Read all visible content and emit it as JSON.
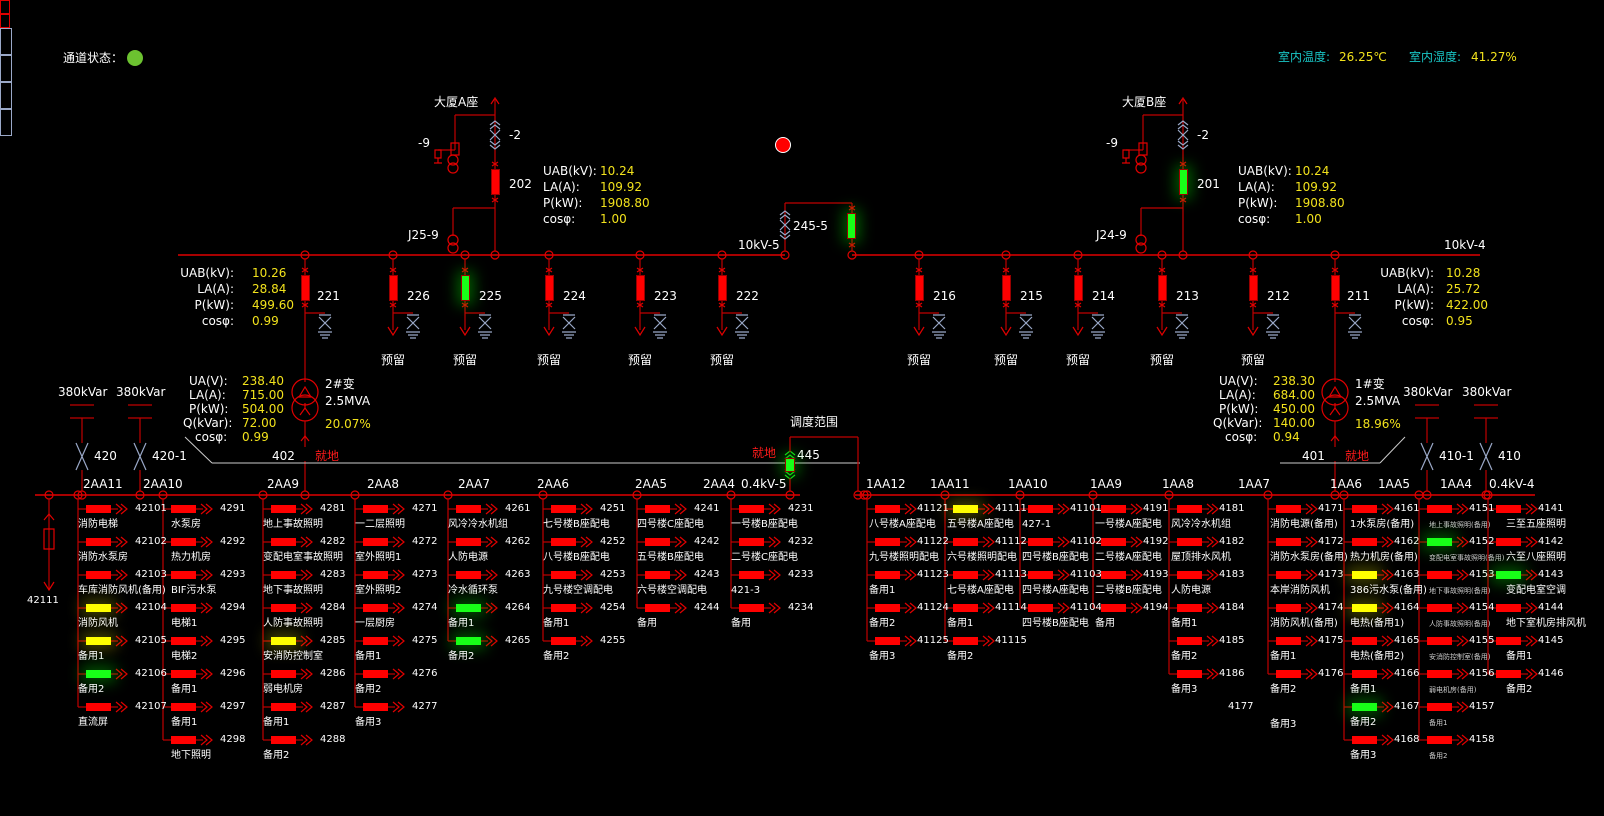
{
  "header": {
    "channel_status_label": "通道状态：",
    "channel_status_color": "#6cc230",
    "temp_label": "室内温度:",
    "temp_value": "26.25℃",
    "humidity_label": "室内湿度:",
    "humidity_value": "41.27%"
  },
  "alarm_indicator_color": "#ff0000",
  "incoming": [
    {
      "title": "大厦A座",
      "earth_switch": "-9",
      "disconnector": "-2",
      "breaker": "202",
      "breaker_state": "open",
      "pt": "J25-9",
      "meter": [
        {
          "k": "UAB(kV):",
          "v": "10.24"
        },
        {
          "k": "LA(A):",
          "v": "109.92"
        },
        {
          "k": "P(kW):",
          "v": "1908.80"
        },
        {
          "k": "cosφ:",
          "v": "1.00"
        }
      ]
    },
    {
      "title": "大厦B座",
      "earth_switch": "-9",
      "disconnector": "-2",
      "breaker": "201",
      "breaker_state": "closed",
      "pt": "J24-9",
      "meter": [
        {
          "k": "UAB(kV):",
          "v": "10.24"
        },
        {
          "k": "LA(A):",
          "v": "109.92"
        },
        {
          "k": "P(kW):",
          "v": "1908.80"
        },
        {
          "k": "cosφ:",
          "v": "1.00"
        }
      ]
    }
  ],
  "hv_buses": {
    "left": "10kV-5",
    "right": "10kV-4",
    "tie": "245-5",
    "tie_state": "closed"
  },
  "hv_feeders": {
    "left": [
      {
        "id": "221",
        "state": "open",
        "label": ""
      },
      {
        "id": "226",
        "state": "open",
        "label": "预留"
      },
      {
        "id": "225",
        "state": "closed",
        "label": "预留"
      },
      {
        "id": "224",
        "state": "open",
        "label": "预留"
      },
      {
        "id": "223",
        "state": "open",
        "label": "预留"
      },
      {
        "id": "222",
        "state": "open",
        "label": "预留"
      }
    ],
    "right": [
      {
        "id": "216",
        "state": "open",
        "label": "预留"
      },
      {
        "id": "215",
        "state": "open",
        "label": "预留"
      },
      {
        "id": "214",
        "state": "open",
        "label": "预留"
      },
      {
        "id": "213",
        "state": "open",
        "label": "预留"
      },
      {
        "id": "212",
        "state": "open",
        "label": "预留"
      },
      {
        "id": "211",
        "state": "open",
        "label": ""
      }
    ]
  },
  "feeder_meters": [
    {
      "feeder": "221",
      "rows": [
        {
          "k": "UAB(kV):",
          "v": "10.26"
        },
        {
          "k": "LA(A):",
          "v": "28.84"
        },
        {
          "k": "P(kW):",
          "v": "499.60"
        },
        {
          "k": "cosφ:",
          "v": "0.99"
        }
      ]
    },
    {
      "feeder": "211",
      "rows": [
        {
          "k": "UAB(kV):",
          "v": "10.28"
        },
        {
          "k": "LA(A):",
          "v": "25.72"
        },
        {
          "k": "P(kW):",
          "v": "422.00"
        },
        {
          "k": "cosφ:",
          "v": "0.95"
        }
      ]
    }
  ],
  "transformers": [
    {
      "name": "2#变",
      "rating": "2.5MVA",
      "load": "20.07%",
      "lv_breaker": "402",
      "mode": "就地",
      "rows": [
        {
          "k": "UA(V):",
          "v": "238.40"
        },
        {
          "k": "LA(A):",
          "v": "715.00"
        },
        {
          "k": "P(kW):",
          "v": "504.00"
        },
        {
          "k": "Q(kVar):",
          "v": "72.00"
        },
        {
          "k": "cosφ:",
          "v": "0.99"
        }
      ]
    },
    {
      "name": "1#变",
      "rating": "2.5MVA",
      "load": "18.96%",
      "lv_breaker": "401",
      "mode": "就地",
      "rows": [
        {
          "k": "UA(V):",
          "v": "238.30"
        },
        {
          "k": "LA(A):",
          "v": "684.00"
        },
        {
          "k": "P(kW):",
          "v": "450.00"
        },
        {
          "k": "Q(kVar):",
          "v": "140.00"
        },
        {
          "k": "cosφ:",
          "v": "0.94"
        }
      ]
    }
  ],
  "capacitors": [
    {
      "rating": "380kVar",
      "id": "420"
    },
    {
      "rating": "380kVar",
      "id": "420-1"
    },
    {
      "rating": "380kVar",
      "id": "410-1"
    },
    {
      "rating": "380kVar",
      "id": "410"
    }
  ],
  "bus_tie": {
    "id": "445",
    "mode": "就地",
    "scope_label": "调度范围",
    "state": "closed"
  },
  "lv_buses": {
    "left": "0.4kV-5",
    "right": "0.4kV-4",
    "left_aux": "42111"
  },
  "lv_sections": {
    "left": [
      {
        "name": "2AA11",
        "feeders": [
          {
            "id": "42101",
            "label": "消防电梯",
            "state": "open"
          },
          {
            "id": "42102",
            "label": "消防水泵房",
            "state": "open"
          },
          {
            "id": "42103",
            "label": "车库消防风机(备用)",
            "state": "open"
          },
          {
            "id": "42104",
            "label": "消防风机",
            "state": "warn"
          },
          {
            "id": "42105",
            "label": "备用1",
            "state": "warn"
          },
          {
            "id": "42106",
            "label": "备用2",
            "state": "closed"
          },
          {
            "id": "42107",
            "label": "直流屏",
            "state": "open"
          }
        ]
      },
      {
        "name": "2AA10",
        "feeders": [
          {
            "id": "4291",
            "label": "水泵房",
            "state": "open"
          },
          {
            "id": "4292",
            "label": "热力机房",
            "state": "open"
          },
          {
            "id": "4293",
            "label": "BIF污水泵",
            "state": "open"
          },
          {
            "id": "4294",
            "label": "电梯1",
            "state": "open"
          },
          {
            "id": "4295",
            "label": "电梯2",
            "state": "open"
          },
          {
            "id": "4296",
            "label": "备用1",
            "state": "open"
          },
          {
            "id": "4297",
            "label": "备用1",
            "state": "open"
          },
          {
            "id": "4298",
            "label": "地下照明",
            "state": "open"
          }
        ]
      },
      {
        "name": "2AA9",
        "feeders": [
          {
            "id": "4281",
            "label": "地上事故照明",
            "state": "open"
          },
          {
            "id": "4282",
            "label": "变配电室事故照明",
            "state": "open"
          },
          {
            "id": "4283",
            "label": "地下事故照明",
            "state": "open"
          },
          {
            "id": "4284",
            "label": "人防事故照明",
            "state": "open"
          },
          {
            "id": "4285",
            "label": "安消防控制室",
            "state": "warn"
          },
          {
            "id": "4286",
            "label": "弱电机房",
            "state": "open"
          },
          {
            "id": "4287",
            "label": "备用1",
            "state": "open"
          },
          {
            "id": "4288",
            "label": "备用2",
            "state": "open"
          }
        ]
      },
      {
        "name": "2AA8",
        "feeders": [
          {
            "id": "4271",
            "label": "一二层照明",
            "state": "open"
          },
          {
            "id": "4272",
            "label": "室外照明1",
            "state": "open"
          },
          {
            "id": "4273",
            "label": "室外照明2",
            "state": "open"
          },
          {
            "id": "4274",
            "label": "一层厨房",
            "state": "open"
          },
          {
            "id": "4275",
            "label": "备用1",
            "state": "open"
          },
          {
            "id": "4276",
            "label": "备用2",
            "state": "open"
          },
          {
            "id": "4277",
            "label": "备用3",
            "state": "open"
          }
        ]
      },
      {
        "name": "2AA7",
        "feeders": [
          {
            "id": "4261",
            "label": "风冷冷水机组",
            "state": "open"
          },
          {
            "id": "4262",
            "label": "人防电源",
            "state": "open"
          },
          {
            "id": "4263",
            "label": "冷水循环泵",
            "state": "open"
          },
          {
            "id": "4264",
            "label": "备用1",
            "state": "closed"
          },
          {
            "id": "4265",
            "label": "备用2",
            "state": "closed"
          }
        ]
      },
      {
        "name": "2AA6",
        "feeders": [
          {
            "id": "4251",
            "label": "七号楼B座配电",
            "state": "open"
          },
          {
            "id": "4252",
            "label": "八号楼B座配电",
            "state": "open"
          },
          {
            "id": "4253",
            "label": "九号楼空调配电",
            "state": "open"
          },
          {
            "id": "4254",
            "label": "备用1",
            "state": "open"
          },
          {
            "id": "4255",
            "label": "备用2",
            "state": "open"
          }
        ]
      },
      {
        "name": "2AA5",
        "feeders": [
          {
            "id": "4241",
            "label": "四号楼C座配电",
            "state": "open"
          },
          {
            "id": "4242",
            "label": "五号楼B座配电",
            "state": "open"
          },
          {
            "id": "4243",
            "label": "六号楼空调配电",
            "state": "open"
          },
          {
            "id": "4244",
            "label": "备用",
            "state": "open"
          }
        ]
      },
      {
        "name": "2AA4",
        "feeders": [
          {
            "id": "4231",
            "label": "一号楼B座配电",
            "state": "open"
          },
          {
            "id": "4232",
            "label": "二号楼C座配电",
            "state": "open"
          },
          {
            "id": "4233",
            "label": "421-3",
            "state": "open"
          },
          {
            "id": "4234",
            "label": "备用",
            "state": "open"
          }
        ]
      }
    ],
    "right": [
      {
        "name": "1AA12",
        "feeders": [
          {
            "id": "41121",
            "label": "八号楼A座配电",
            "state": "open"
          },
          {
            "id": "41122",
            "label": "九号楼照明配电",
            "state": "open"
          },
          {
            "id": "41123",
            "label": "备用1",
            "state": "open"
          },
          {
            "id": "41124",
            "label": "备用2",
            "state": "open"
          },
          {
            "id": "41125",
            "label": "备用3",
            "state": "open"
          }
        ]
      },
      {
        "name": "1AA11",
        "feeders": [
          {
            "id": "41111",
            "label": "五号楼A座配电",
            "state": "warn"
          },
          {
            "id": "41112",
            "label": "六号楼照明配电",
            "state": "open"
          },
          {
            "id": "41113",
            "label": "七号楼A座配电",
            "state": "open"
          },
          {
            "id": "41114",
            "label": "备用1",
            "state": "open"
          },
          {
            "id": "41115",
            "label": "备用2",
            "state": "open"
          }
        ]
      },
      {
        "name": "1AA10",
        "feeders": [
          {
            "id": "41101",
            "label": "427-1",
            "state": "open"
          },
          {
            "id": "41102",
            "label": "四号楼B座配电",
            "state": "open"
          },
          {
            "id": "41103",
            "label": "四号楼A座配电",
            "state": "open"
          },
          {
            "id": "41104",
            "label": "四号楼B座配电",
            "state": "open"
          }
        ]
      },
      {
        "name": "1AA9",
        "feeders": [
          {
            "id": "4191",
            "label": "一号楼A座配电",
            "state": "open"
          },
          {
            "id": "4192",
            "label": "二号楼A座配电",
            "state": "open"
          },
          {
            "id": "4193",
            "label": "二号楼B座配电",
            "state": "open"
          },
          {
            "id": "4194",
            "label": "备用",
            "state": "open"
          }
        ]
      },
      {
        "name": "1AA8",
        "feeders": [
          {
            "id": "4181",
            "label": "风冷冷水机组",
            "state": "open"
          },
          {
            "id": "4182",
            "label": "屋顶排水风机",
            "state": "open"
          },
          {
            "id": "4183",
            "label": "人防电源",
            "state": "open"
          },
          {
            "id": "4184",
            "label": "备用1",
            "state": "open"
          },
          {
            "id": "4185",
            "label": "备用2",
            "state": "open"
          },
          {
            "id": "4186",
            "label": "备用3",
            "state": "open"
          }
        ]
      },
      {
        "name": "1AA7",
        "feeders": [
          {
            "id": "4171",
            "label": "消防电源(备用)",
            "state": "open"
          },
          {
            "id": "4172",
            "label": "消防水泵房(备用)",
            "state": "open"
          },
          {
            "id": "4173",
            "label": "本岸消防风机",
            "state": "open"
          },
          {
            "id": "4174",
            "label": "消防风机(备用)",
            "state": "open"
          },
          {
            "id": "4175",
            "label": "备用1",
            "state": "open"
          },
          {
            "id": "4176",
            "label": "备用2",
            "state": "open"
          },
          {
            "id": "4177",
            "label": "备用3",
            "state": "none"
          }
        ]
      },
      {
        "name": "1AA6",
        "feeders": [
          {
            "id": "4161",
            "label": "1水泵房(备用)",
            "state": "open"
          },
          {
            "id": "4162",
            "label": "热力机房(备用)",
            "state": "open"
          },
          {
            "id": "4163",
            "label": "386污水泵(备用)",
            "state": "warn"
          },
          {
            "id": "4164",
            "label": "电热(备用1)",
            "state": "warn"
          },
          {
            "id": "4165",
            "label": "电热(备用2)",
            "state": "open"
          },
          {
            "id": "4166",
            "label": "备用1",
            "state": "open"
          },
          {
            "id": "4167",
            "label": "备用2",
            "state": "closed"
          },
          {
            "id": "4168",
            "label": "备用3",
            "state": "open"
          }
        ]
      },
      {
        "name": "1AA5",
        "feeders": [
          {
            "id": "4151",
            "label": "地上事故照明(备用)",
            "state": "open"
          },
          {
            "id": "4152",
            "label": "变配电室事故照明(备用)",
            "state": "closed"
          },
          {
            "id": "4153",
            "label": "地下事故照明(备用)",
            "state": "open"
          },
          {
            "id": "4154",
            "label": "人防事故照明(备用)",
            "state": "open"
          },
          {
            "id": "4155",
            "label": "安消防控制室(备用)",
            "state": "open"
          },
          {
            "id": "4156",
            "label": "弱电机房(备用)",
            "state": "open"
          },
          {
            "id": "4157",
            "label": "备用1",
            "state": "open"
          },
          {
            "id": "4158",
            "label": "备用2",
            "state": "open"
          }
        ]
      },
      {
        "name": "1AA4",
        "feeders": [
          {
            "id": "4141",
            "label": "三至五座照明",
            "state": "open"
          },
          {
            "id": "4142",
            "label": "六至八座照明",
            "state": "open"
          },
          {
            "id": "4143",
            "label": "变配电室空调",
            "state": "closed"
          },
          {
            "id": "4144",
            "label": "地下室机房排风机",
            "state": "open"
          },
          {
            "id": "4145",
            "label": "备用1",
            "state": "open"
          },
          {
            "id": "4146",
            "label": "备用2",
            "state": "open"
          }
        ]
      }
    ]
  }
}
